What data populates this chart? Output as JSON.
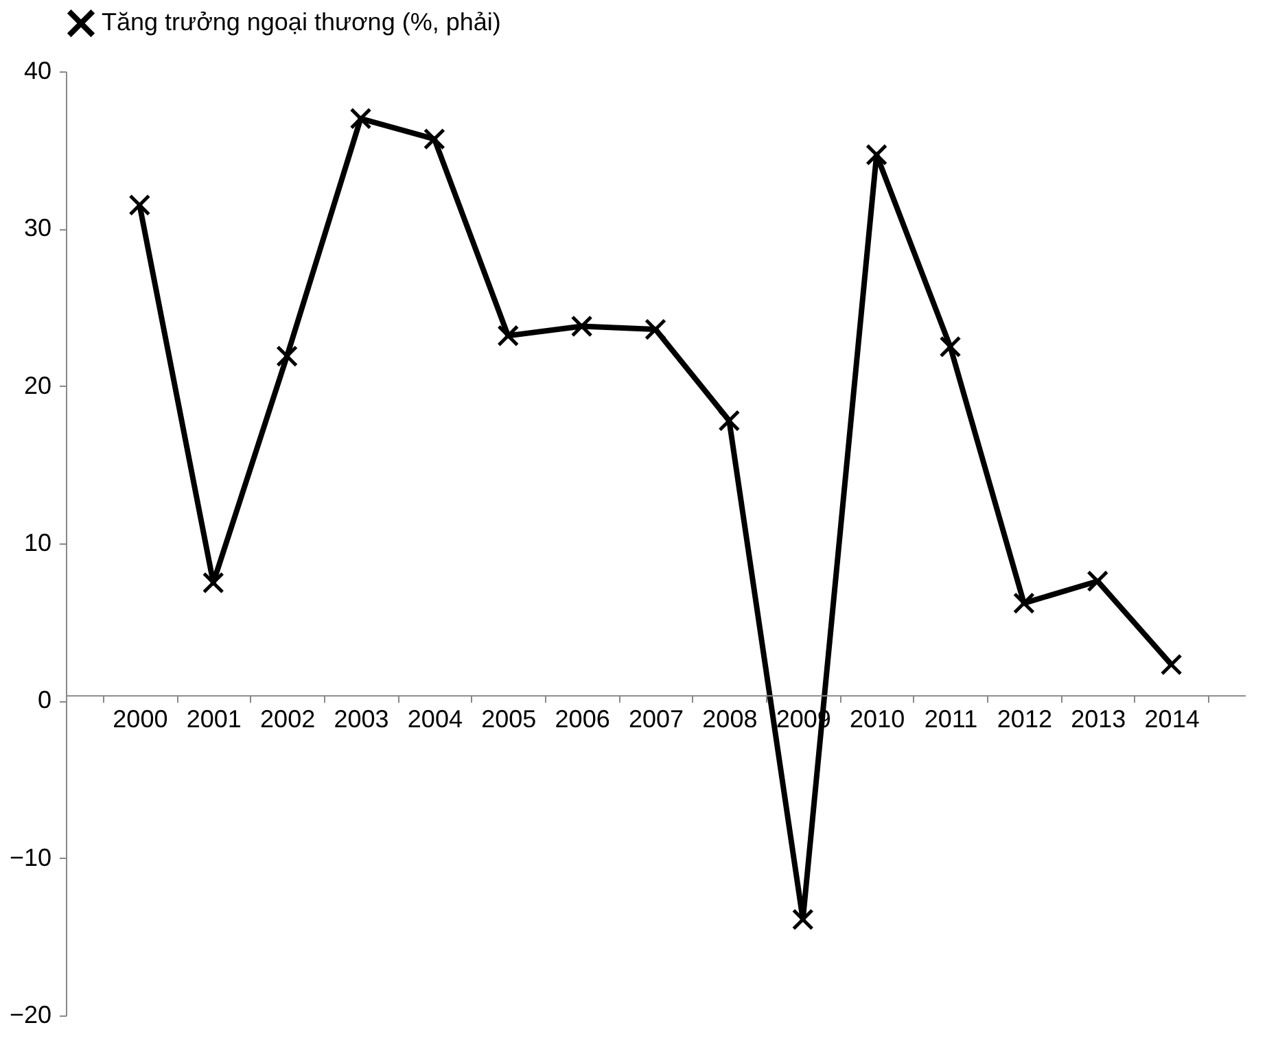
{
  "chart_data": {
    "type": "line",
    "categories": [
      "2000",
      "2001",
      "2002",
      "2003",
      "2004",
      "2005",
      "2006",
      "2007",
      "2008",
      "2009",
      "2010",
      "2011",
      "2012",
      "2013",
      "2014"
    ],
    "series": [
      {
        "name": "Tăng trưởng ngoại thương (%, phải)",
        "color": "#000000",
        "values": [
          31.5,
          7.5,
          21.9,
          37.0,
          35.7,
          23.2,
          23.8,
          23.6,
          17.8,
          -13.9,
          34.7,
          22.5,
          6.2,
          7.6,
          2.3
        ]
      }
    ],
    "ylim": [
      -20,
      40
    ],
    "yticks": [
      -20,
      -10,
      0,
      10,
      20,
      30,
      40
    ],
    "grid": false,
    "legend": "top",
    "marker": "cross",
    "line_style": "solid"
  }
}
